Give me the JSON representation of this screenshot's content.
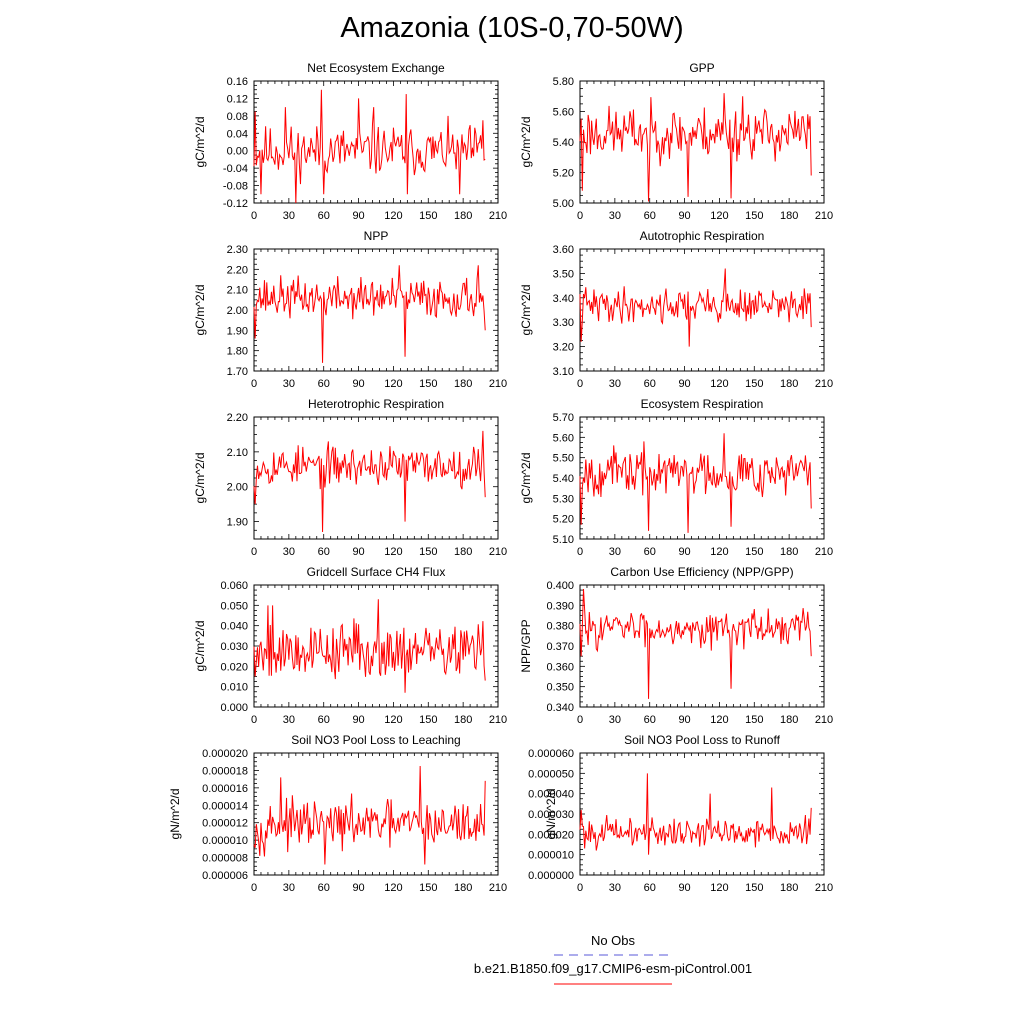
{
  "title": "Amazonia (10S-0,70-50W)",
  "legend": {
    "entries": [
      {
        "label": "No Obs",
        "color": "#5a5ad8",
        "style": "dashed"
      },
      {
        "label": "b.e21.B1850.f09_g17.CMIP6-esm-piControl.001",
        "color": "#ff0000",
        "style": "solid"
      }
    ]
  },
  "chart_data": [
    {
      "type": "line",
      "title": "Net Ecosystem Exchange",
      "ylabel": "gC/m^2/d",
      "xlim": [
        0,
        210
      ],
      "ylim": [
        -0.12,
        0.16
      ],
      "xticks": [
        0,
        30,
        60,
        90,
        120,
        150,
        180,
        210
      ],
      "xticklabels": [
        "0",
        "30",
        "60",
        "90",
        "120",
        "150",
        "180",
        "210"
      ],
      "yticks": [
        -0.12,
        -0.08,
        -0.04,
        0.0,
        0.04,
        0.08,
        0.12,
        0.16
      ],
      "yticklabels": [
        "-0.12",
        "-0.08",
        "-0.04",
        "0.00",
        "0.04",
        "0.08",
        "0.12",
        "0.16"
      ],
      "series": {
        "name": "b.e21.B1850.f09_g17.CMIP6-esm-piControl.001",
        "color": "#ff0000",
        "n": 200,
        "base": 0.0,
        "amp": 0.04,
        "seed": 11,
        "spikes": [
          {
            "x": 1,
            "y": 0.09
          },
          {
            "x": 6,
            "y": -0.1
          },
          {
            "x": 27,
            "y": 0.1
          },
          {
            "x": 36,
            "y": -0.12
          },
          {
            "x": 58,
            "y": 0.14
          },
          {
            "x": 60,
            "y": -0.1
          },
          {
            "x": 90,
            "y": 0.12
          },
          {
            "x": 103,
            "y": 0.1
          },
          {
            "x": 131,
            "y": 0.13
          },
          {
            "x": 132,
            "y": -0.1
          },
          {
            "x": 177,
            "y": -0.1
          },
          {
            "x": 197,
            "y": 0.07
          }
        ]
      }
    },
    {
      "type": "line",
      "title": "GPP",
      "ylabel": "gC/m^2/d",
      "xlim": [
        0,
        210
      ],
      "ylim": [
        5.0,
        5.8
      ],
      "xticks": [
        0,
        30,
        60,
        90,
        120,
        150,
        180,
        210
      ],
      "xticklabels": [
        "0",
        "30",
        "60",
        "90",
        "120",
        "150",
        "180",
        "210"
      ],
      "yticks": [
        5.0,
        5.2,
        5.4,
        5.6,
        5.8
      ],
      "yticklabels": [
        "5.00",
        "5.20",
        "5.40",
        "5.60",
        "5.80"
      ],
      "series": {
        "name": "b.e21.B1850.f09_g17.CMIP6-esm-piControl.001",
        "color": "#ff0000",
        "n": 200,
        "base": 5.46,
        "amp": 0.12,
        "seed": 23,
        "spikes": [
          {
            "x": 2,
            "y": 5.08
          },
          {
            "x": 59,
            "y": 5.01
          },
          {
            "x": 93,
            "y": 5.04
          },
          {
            "x": 124,
            "y": 5.72
          },
          {
            "x": 130,
            "y": 5.03
          },
          {
            "x": 140,
            "y": 5.7
          },
          {
            "x": 199,
            "y": 5.18
          }
        ]
      }
    },
    {
      "type": "line",
      "title": "NPP",
      "ylabel": "gC/m^2/d",
      "xlim": [
        0,
        210
      ],
      "ylim": [
        1.7,
        2.3
      ],
      "xticks": [
        0,
        30,
        60,
        90,
        120,
        150,
        180,
        210
      ],
      "xticklabels": [
        "0",
        "30",
        "60",
        "90",
        "120",
        "150",
        "180",
        "210"
      ],
      "yticks": [
        1.7,
        1.8,
        1.9,
        2.0,
        2.1,
        2.2,
        2.3
      ],
      "yticklabels": [
        "1.70",
        "1.80",
        "1.90",
        "2.00",
        "2.10",
        "2.20",
        "2.30"
      ],
      "series": {
        "name": "b.e21.B1850.f09_g17.CMIP6-esm-piControl.001",
        "color": "#ff0000",
        "n": 200,
        "base": 2.06,
        "amp": 0.07,
        "seed": 37,
        "spikes": [
          {
            "x": 1,
            "y": 1.86
          },
          {
            "x": 59,
            "y": 1.74
          },
          {
            "x": 130,
            "y": 1.77
          },
          {
            "x": 125,
            "y": 2.22
          },
          {
            "x": 193,
            "y": 2.22
          },
          {
            "x": 199,
            "y": 1.9
          }
        ]
      }
    },
    {
      "type": "line",
      "title": "Autotrophic Respiration",
      "ylabel": "gC/m^2/d",
      "xlim": [
        0,
        210
      ],
      "ylim": [
        3.1,
        3.6
      ],
      "xticks": [
        0,
        30,
        60,
        90,
        120,
        150,
        180,
        210
      ],
      "xticklabels": [
        "0",
        "30",
        "60",
        "90",
        "120",
        "150",
        "180",
        "210"
      ],
      "yticks": [
        3.1,
        3.2,
        3.3,
        3.4,
        3.5,
        3.6
      ],
      "yticklabels": [
        "3.10",
        "3.20",
        "3.30",
        "3.40",
        "3.50",
        "3.60"
      ],
      "series": {
        "name": "b.e21.B1850.f09_g17.CMIP6-esm-piControl.001",
        "color": "#ff0000",
        "n": 200,
        "base": 3.37,
        "amp": 0.05,
        "seed": 41,
        "spikes": [
          {
            "x": 1,
            "y": 3.22
          },
          {
            "x": 94,
            "y": 3.2
          },
          {
            "x": 125,
            "y": 3.52
          },
          {
            "x": 199,
            "y": 3.28
          }
        ]
      }
    },
    {
      "type": "line",
      "title": "Heterotrophic Respiration",
      "ylabel": "gC/m^2/d",
      "xlim": [
        0,
        210
      ],
      "ylim": [
        1.85,
        2.2
      ],
      "xticks": [
        0,
        30,
        60,
        90,
        120,
        150,
        180,
        210
      ],
      "xticklabels": [
        "0",
        "30",
        "60",
        "90",
        "120",
        "150",
        "180",
        "210"
      ],
      "yticks": [
        1.9,
        2.0,
        2.1,
        2.2
      ],
      "yticklabels": [
        "1.90",
        "2.00",
        "2.10",
        "2.20"
      ],
      "series": {
        "name": "b.e21.B1850.f09_g17.CMIP6-esm-piControl.001",
        "color": "#ff0000",
        "n": 200,
        "base": 2.06,
        "amp": 0.04,
        "seed": 53,
        "spikes": [
          {
            "x": 1,
            "y": 1.95
          },
          {
            "x": 59,
            "y": 1.87
          },
          {
            "x": 130,
            "y": 1.9
          },
          {
            "x": 197,
            "y": 2.16
          },
          {
            "x": 199,
            "y": 1.97
          }
        ]
      }
    },
    {
      "type": "line",
      "title": "Ecosystem Respiration",
      "ylabel": "gC/m^2/d",
      "xlim": [
        0,
        210
      ],
      "ylim": [
        5.1,
        5.7
      ],
      "xticks": [
        0,
        30,
        60,
        90,
        120,
        150,
        180,
        210
      ],
      "xticklabels": [
        "0",
        "30",
        "60",
        "90",
        "120",
        "150",
        "180",
        "210"
      ],
      "yticks": [
        5.1,
        5.2,
        5.3,
        5.4,
        5.5,
        5.6,
        5.7
      ],
      "yticklabels": [
        "5.10",
        "5.20",
        "5.30",
        "5.40",
        "5.50",
        "5.60",
        "5.70"
      ],
      "series": {
        "name": "b.e21.B1850.f09_g17.CMIP6-esm-piControl.001",
        "color": "#ff0000",
        "n": 200,
        "base": 5.43,
        "amp": 0.08,
        "seed": 67,
        "spikes": [
          {
            "x": 1,
            "y": 5.17
          },
          {
            "x": 59,
            "y": 5.14
          },
          {
            "x": 93,
            "y": 5.13
          },
          {
            "x": 130,
            "y": 5.16
          },
          {
            "x": 124,
            "y": 5.62
          },
          {
            "x": 199,
            "y": 5.25
          }
        ]
      }
    },
    {
      "type": "line",
      "title": "Gridcell Surface CH4 Flux",
      "ylabel": "gC/m^2/d",
      "xlim": [
        0,
        210
      ],
      "ylim": [
        0.0,
        0.06
      ],
      "xticks": [
        0,
        30,
        60,
        90,
        120,
        150,
        180,
        210
      ],
      "xticklabels": [
        "0",
        "30",
        "60",
        "90",
        "120",
        "150",
        "180",
        "210"
      ],
      "yticks": [
        0.0,
        0.01,
        0.02,
        0.03,
        0.04,
        0.05,
        0.06
      ],
      "yticklabels": [
        "0.000",
        "0.010",
        "0.020",
        "0.030",
        "0.040",
        "0.050",
        "0.060"
      ],
      "series": {
        "name": "b.e21.B1850.f09_g17.CMIP6-esm-piControl.001",
        "color": "#ff0000",
        "n": 200,
        "base": 0.028,
        "amp": 0.01,
        "seed": 79,
        "spikes": [
          {
            "x": 1,
            "y": 0.015
          },
          {
            "x": 12,
            "y": 0.05
          },
          {
            "x": 16,
            "y": 0.05
          },
          {
            "x": 107,
            "y": 0.053
          },
          {
            "x": 130,
            "y": 0.007
          },
          {
            "x": 199,
            "y": 0.013
          }
        ]
      }
    },
    {
      "type": "line",
      "title": "Carbon Use Efficiency (NPP/GPP)",
      "ylabel": "NPP/GPP",
      "xlim": [
        0,
        210
      ],
      "ylim": [
        0.34,
        0.4
      ],
      "xticks": [
        0,
        30,
        60,
        90,
        120,
        150,
        180,
        210
      ],
      "xticklabels": [
        "0",
        "30",
        "60",
        "90",
        "120",
        "150",
        "180",
        "210"
      ],
      "yticks": [
        0.34,
        0.35,
        0.36,
        0.37,
        0.38,
        0.39,
        0.4
      ],
      "yticklabels": [
        "0.340",
        "0.350",
        "0.360",
        "0.370",
        "0.380",
        "0.390",
        "0.400"
      ],
      "series": {
        "name": "b.e21.B1850.f09_g17.CMIP6-esm-piControl.001",
        "color": "#ff0000",
        "n": 200,
        "base": 0.379,
        "amp": 0.006,
        "seed": 83,
        "spikes": [
          {
            "x": 1,
            "y": 0.365
          },
          {
            "x": 3,
            "y": 0.398
          },
          {
            "x": 59,
            "y": 0.344
          },
          {
            "x": 130,
            "y": 0.349
          },
          {
            "x": 199,
            "y": 0.365
          }
        ]
      }
    },
    {
      "type": "line",
      "title": "Soil NO3 Pool Loss to Leaching",
      "ylabel": "gN/m^2/d",
      "xlim": [
        0,
        210
      ],
      "ylim": [
        6e-06,
        2e-05
      ],
      "xticks": [
        0,
        30,
        60,
        90,
        120,
        150,
        180,
        210
      ],
      "xticklabels": [
        "0",
        "30",
        "60",
        "90",
        "120",
        "150",
        "180",
        "210"
      ],
      "yticks": [
        6e-06,
        8e-06,
        1e-05,
        1.2e-05,
        1.4e-05,
        1.6e-05,
        1.8e-05,
        2e-05
      ],
      "yticklabels": [
        "0.000006",
        "0.000008",
        "0.000010",
        "0.000012",
        "0.000014",
        "0.000016",
        "0.000018",
        "0.000020"
      ],
      "series": {
        "name": "b.e21.B1850.f09_g17.CMIP6-esm-piControl.001",
        "color": "#ff0000",
        "n": 200,
        "base": 1.18e-05,
        "amp": 1.8e-06,
        "seed": 97,
        "spikes": [
          {
            "x": 5,
            "y": 8.2e-06
          },
          {
            "x": 23,
            "y": 1.72e-05
          },
          {
            "x": 61,
            "y": 7.2e-06
          },
          {
            "x": 143,
            "y": 1.85e-05
          },
          {
            "x": 147,
            "y": 7.2e-06
          },
          {
            "x": 199,
            "y": 1.68e-05
          }
        ]
      }
    },
    {
      "type": "line",
      "title": "Soil NO3 Pool Loss to Runoff",
      "ylabel": "gN/m^2/d",
      "xlim": [
        0,
        210
      ],
      "ylim": [
        0.0,
        6e-05
      ],
      "xticks": [
        0,
        30,
        60,
        90,
        120,
        150,
        180,
        210
      ],
      "xticklabels": [
        "0",
        "30",
        "60",
        "90",
        "120",
        "150",
        "180",
        "210"
      ],
      "yticks": [
        0.0,
        1e-05,
        2e-05,
        3e-05,
        4e-05,
        5e-05,
        6e-05
      ],
      "yticklabels": [
        "0.000000",
        "0.000010",
        "0.000020",
        "0.000030",
        "0.000040",
        "0.000050",
        "0.000060"
      ],
      "series": {
        "name": "b.e21.B1850.f09_g17.CMIP6-esm-piControl.001",
        "color": "#ff0000",
        "n": 200,
        "base": 2.1e-05,
        "amp": 5e-06,
        "seed": 101,
        "spikes": [
          {
            "x": 1,
            "y": 3.2e-05
          },
          {
            "x": 58,
            "y": 5e-05
          },
          {
            "x": 59,
            "y": 1e-05
          },
          {
            "x": 112,
            "y": 4e-05
          },
          {
            "x": 165,
            "y": 4.3e-05
          },
          {
            "x": 199,
            "y": 3.3e-05
          }
        ]
      }
    }
  ]
}
